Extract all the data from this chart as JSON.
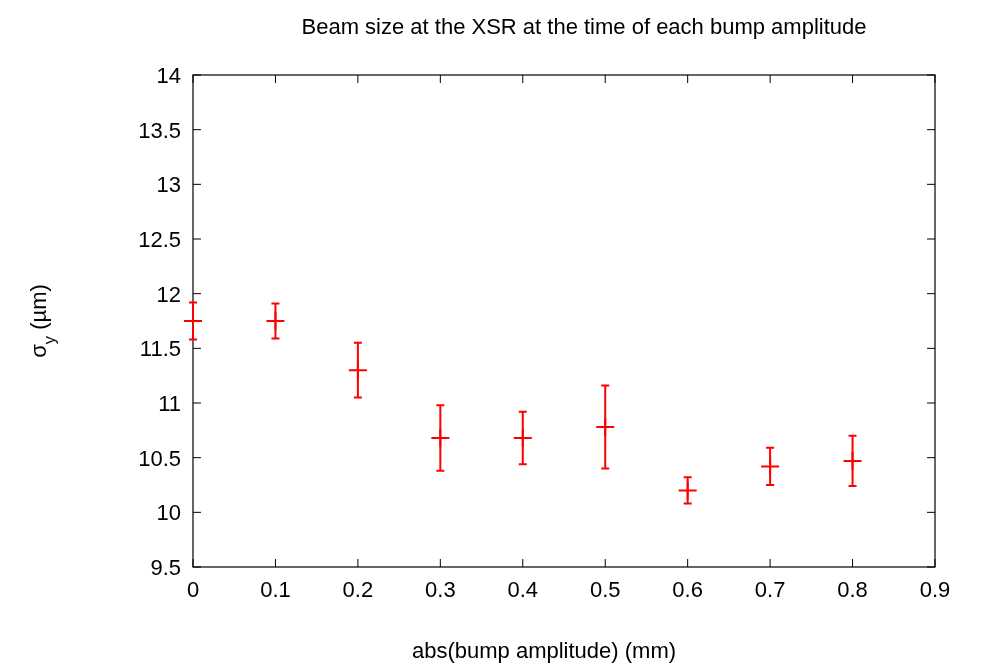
{
  "chart_data": {
    "type": "scatter",
    "title": "Beam size at the XSR at the time of each bump amplitude",
    "xlabel": "abs(bump amplitude) (mm)",
    "ylabel": "σ$_{y}$ (µm)",
    "x": [
      0,
      0.1,
      0.2,
      0.3,
      0.4,
      0.5,
      0.6,
      0.7,
      0.8
    ],
    "series": [
      {
        "color": "#ff0000",
        "values": [
          11.75,
          11.75,
          11.3,
          10.68,
          10.68,
          10.78,
          10.2,
          10.42,
          10.47
        ],
        "errors": [
          0.17,
          0.16,
          0.25,
          0.3,
          0.24,
          0.38,
          0.12,
          0.17,
          0.23
        ]
      }
    ],
    "marker": "cross",
    "xlim": [
      0,
      0.9
    ],
    "xticks": [
      0,
      0.1,
      0.2,
      0.3,
      0.4,
      0.5,
      0.6,
      0.7,
      0.8,
      0.9
    ],
    "ylim": [
      9.5,
      14
    ],
    "yticks": [
      9.5,
      10,
      10.5,
      11,
      11.5,
      12,
      12.5,
      13,
      13.5,
      14
    ],
    "grid": false
  }
}
